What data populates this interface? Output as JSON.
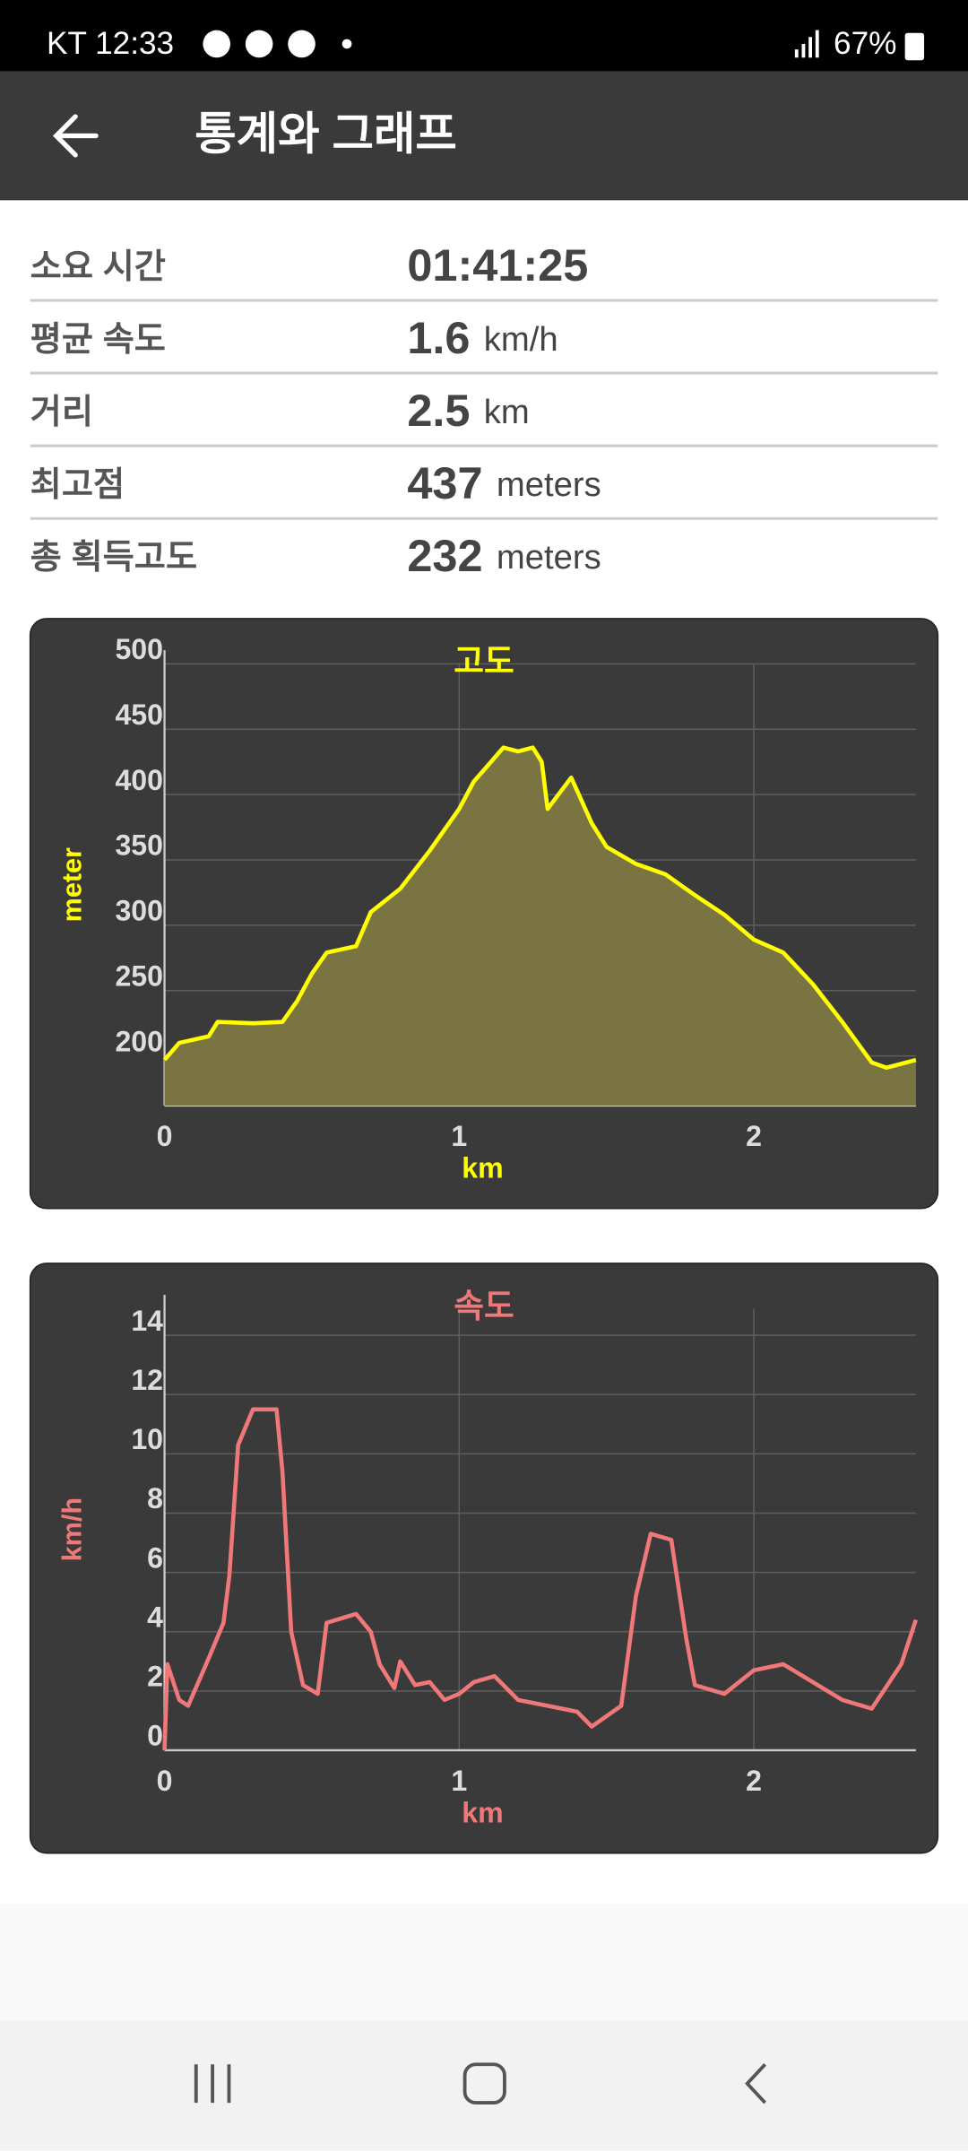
{
  "status_bar": {
    "carrier_time": "KT 12:33",
    "battery": "67%"
  },
  "header": {
    "title": "통계와 그래프"
  },
  "stats": [
    {
      "label": "소요 시간",
      "value": "01:41:25"
    },
    {
      "label": "평균 속도",
      "value": "1.6",
      "unit": "km/h"
    },
    {
      "label": "거리",
      "value": "2.5",
      "unit": "km"
    },
    {
      "label": "최고점",
      "value": "437",
      "unit": "meters"
    },
    {
      "label": "총 획득고도",
      "value": "232",
      "unit": "meters"
    }
  ],
  "chart_data": [
    {
      "type": "area",
      "title": "고도",
      "x_label": "km",
      "y_label": "meter",
      "color": "#ffff00",
      "fill_color": "#7a7443",
      "x": [
        0,
        0.05,
        0.15,
        0.18,
        0.3,
        0.4,
        0.45,
        0.5,
        0.55,
        0.65,
        0.7,
        0.8,
        0.9,
        1.0,
        1.05,
        1.1,
        1.15,
        1.2,
        1.25,
        1.28,
        1.3,
        1.38,
        1.45,
        1.5,
        1.6,
        1.7,
        1.8,
        1.9,
        2.0,
        2.1,
        2.2,
        2.3,
        2.4,
        2.45,
        2.55
      ],
      "values": [
        197,
        210,
        215,
        226,
        225,
        226,
        242,
        263,
        279,
        284,
        310,
        328,
        357,
        389,
        410,
        423,
        436,
        433,
        436,
        425,
        389,
        413,
        378,
        360,
        347,
        339,
        323,
        308,
        289,
        279,
        255,
        226,
        195,
        191,
        197
      ],
      "xlim": [
        0,
        2.55
      ],
      "ylim": [
        162,
        500
      ],
      "xticks": [
        0,
        1,
        2
      ],
      "yticks": [
        200,
        250,
        300,
        350,
        400,
        450,
        500
      ],
      "grid": true
    },
    {
      "type": "line",
      "title": "속도",
      "x_label": "km",
      "y_label": "km/h",
      "color": "#f07878",
      "x": [
        0,
        0.01,
        0.05,
        0.08,
        0.15,
        0.2,
        0.22,
        0.25,
        0.3,
        0.38,
        0.4,
        0.43,
        0.47,
        0.52,
        0.55,
        0.65,
        0.7,
        0.73,
        0.78,
        0.8,
        0.85,
        0.9,
        0.95,
        1.0,
        1.05,
        1.12,
        1.2,
        1.3,
        1.4,
        1.45,
        1.55,
        1.6,
        1.65,
        1.72,
        1.77,
        1.8,
        1.9,
        2.0,
        2.1,
        2.2,
        2.3,
        2.4,
        2.5,
        2.55
      ],
      "values": [
        0,
        2.9,
        1.7,
        1.5,
        3.1,
        4.3,
        5.9,
        10.3,
        11.5,
        11.5,
        9.4,
        4.0,
        2.2,
        1.9,
        4.3,
        4.6,
        4.0,
        2.9,
        2.1,
        3.0,
        2.2,
        2.3,
        1.7,
        1.9,
        2.3,
        2.5,
        1.7,
        1.5,
        1.3,
        0.8,
        1.5,
        5.2,
        7.3,
        7.1,
        3.8,
        2.2,
        1.9,
        2.7,
        2.9,
        2.3,
        1.7,
        1.4,
        2.9,
        4.4
      ],
      "xlim": [
        0,
        2.55
      ],
      "ylim": [
        0,
        14.9
      ],
      "xticks": [
        0,
        1,
        2
      ],
      "yticks": [
        0,
        2,
        4,
        6,
        8,
        10,
        12,
        14
      ],
      "grid": true
    }
  ]
}
